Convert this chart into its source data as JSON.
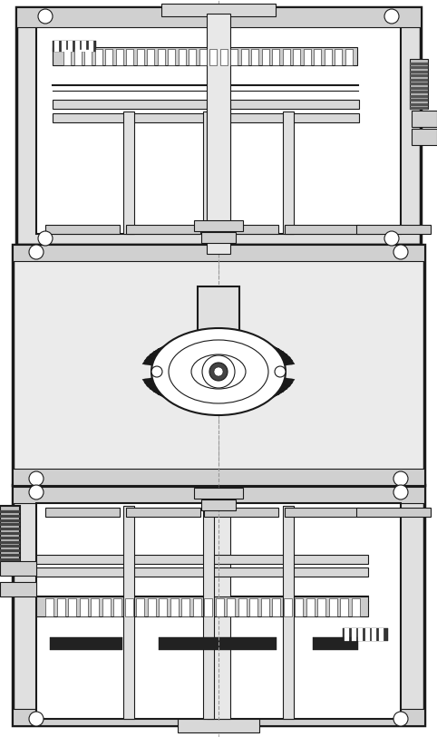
{
  "fig_width": 4.82,
  "fig_height": 8.13,
  "dpi": 100,
  "lc": "#1a1a1a",
  "fc_outer": "#d8d8d8",
  "fc_inner": "#ffffff",
  "fc_gray": "#e8e8e8",
  "fc_dark": "#222222",
  "fc_mid": "#aaaaaa"
}
